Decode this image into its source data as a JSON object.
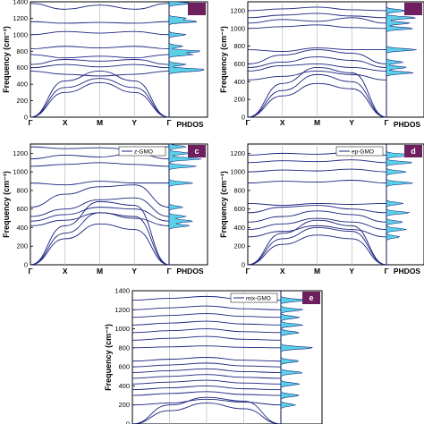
{
  "figure": {
    "common": {
      "ylabel": "Frequency (cm⁻¹)",
      "dos_label": "PHDOS",
      "x_tick_labels": [
        "Γ",
        "X",
        "M",
        "Y",
        "Γ"
      ],
      "band_color": "#1a237e",
      "dos_fill_color": "#5ad1e6"
    }
  },
  "chart_data": [
    {
      "panel": "a",
      "type": "line",
      "legend": "",
      "badge": "",
      "ylim": [
        0,
        1400
      ],
      "yticks": [
        0,
        200,
        400,
        600,
        800,
        1000,
        1200,
        1400
      ],
      "ytick_labels": [
        "0",
        "200",
        "400",
        "600",
        "800",
        "1000",
        "1200",
        "1400"
      ],
      "x_tick_labels": [
        "Γ",
        "X",
        "M",
        "Y",
        "Γ"
      ],
      "series": [
        {
          "values": [
            0,
            300,
            420,
            300,
            0
          ]
        },
        {
          "values": [
            0,
            360,
            470,
            360,
            0
          ]
        },
        {
          "values": [
            0,
            440,
            560,
            440,
            0
          ]
        },
        {
          "values": [
            560,
            520,
            500,
            520,
            560
          ]
        },
        {
          "values": [
            600,
            640,
            610,
            640,
            600
          ]
        },
        {
          "values": [
            640,
            700,
            680,
            700,
            640
          ]
        },
        {
          "values": [
            760,
            720,
            740,
            720,
            760
          ]
        },
        {
          "values": [
            830,
            860,
            840,
            860,
            830
          ]
        },
        {
          "values": [
            1000,
            1040,
            1020,
            1040,
            1000
          ]
        },
        {
          "values": [
            1160,
            1140,
            1150,
            1140,
            1160
          ]
        },
        {
          "values": [
            1380,
            1310,
            1360,
            1310,
            1380
          ]
        }
      ],
      "dos_peaks": [
        [
          560,
          0.6
        ],
        [
          580,
          0.9
        ],
        [
          640,
          0.5
        ],
        [
          760,
          0.7
        ],
        [
          800,
          0.95
        ],
        [
          860,
          0.4
        ],
        [
          1000,
          0.5
        ],
        [
          1160,
          0.85
        ],
        [
          1200,
          0.5
        ],
        [
          1380,
          0.7
        ]
      ]
    },
    {
      "panel": "b",
      "type": "line",
      "legend": "",
      "badge": "",
      "ylim": [
        0,
        1300
      ],
      "yticks": [
        0,
        200,
        400,
        600,
        800,
        1000,
        1200
      ],
      "ytick_labels": [
        "0",
        "200",
        "400",
        "600",
        "800",
        "1000",
        "1200"
      ],
      "x_tick_labels": [
        "Γ",
        "X",
        "M",
        "Y",
        "Γ"
      ],
      "series": [
        {
          "values": [
            0,
            240,
            380,
            320,
            0
          ]
        },
        {
          "values": [
            0,
            300,
            480,
            400,
            0
          ]
        },
        {
          "values": [
            0,
            380,
            560,
            500,
            0
          ]
        },
        {
          "values": [
            420,
            460,
            520,
            480,
            420
          ]
        },
        {
          "values": [
            520,
            580,
            600,
            560,
            520
          ]
        },
        {
          "values": [
            560,
            620,
            680,
            640,
            560
          ]
        },
        {
          "values": [
            600,
            700,
            760,
            720,
            600
          ]
        },
        {
          "values": [
            760,
            740,
            780,
            760,
            760
          ]
        },
        {
          "values": [
            1000,
            1020,
            1040,
            1010,
            1000
          ]
        },
        {
          "values": [
            1060,
            1100,
            1080,
            1120,
            1060
          ]
        },
        {
          "values": [
            1120,
            1150,
            1170,
            1140,
            1120
          ]
        },
        {
          "values": [
            1200,
            1220,
            1240,
            1210,
            1200
          ]
        }
      ],
      "dos_peaks": [
        [
          500,
          0.8
        ],
        [
          560,
          0.6
        ],
        [
          620,
          0.5
        ],
        [
          760,
          0.9
        ],
        [
          1000,
          0.8
        ],
        [
          1060,
          0.7
        ],
        [
          1120,
          0.9
        ],
        [
          1200,
          0.6
        ]
      ]
    },
    {
      "panel": "c",
      "type": "line",
      "legend": "z-GMO",
      "badge": "c",
      "ylim": [
        0,
        1300
      ],
      "yticks": [
        0,
        200,
        400,
        600,
        800,
        1000,
        1200
      ],
      "ytick_labels": [
        "0",
        "200",
        "400",
        "600",
        "800",
        "1000",
        "1200"
      ],
      "x_tick_labels": [
        "Γ",
        "X",
        "M",
        "Y",
        "Γ"
      ],
      "series": [
        {
          "values": [
            0,
            280,
            440,
            380,
            0
          ]
        },
        {
          "values": [
            0,
            340,
            560,
            520,
            0
          ]
        },
        {
          "values": [
            0,
            420,
            680,
            640,
            0
          ]
        },
        {
          "values": [
            420,
            480,
            560,
            500,
            420
          ]
        },
        {
          "values": [
            470,
            540,
            620,
            600,
            470
          ]
        },
        {
          "values": [
            520,
            600,
            700,
            720,
            520
          ]
        },
        {
          "values": [
            620,
            760,
            840,
            860,
            620
          ]
        },
        {
          "values": [
            880,
            860,
            900,
            880,
            880
          ]
        },
        {
          "values": [
            1060,
            1080,
            1100,
            1080,
            1060
          ]
        },
        {
          "values": [
            1140,
            1180,
            1160,
            1200,
            1140
          ]
        },
        {
          "values": [
            1270,
            1250,
            1260,
            1240,
            1270
          ]
        }
      ],
      "dos_peaks": [
        [
          420,
          0.6
        ],
        [
          470,
          0.7
        ],
        [
          520,
          0.5
        ],
        [
          620,
          0.4
        ],
        [
          880,
          0.7
        ],
        [
          1060,
          0.8
        ],
        [
          1140,
          0.95
        ],
        [
          1200,
          0.6
        ],
        [
          1270,
          0.5
        ]
      ]
    },
    {
      "panel": "d",
      "type": "line",
      "legend": "ep-GMO",
      "badge": "d",
      "ylim": [
        0,
        1300
      ],
      "yticks": [
        0,
        200,
        400,
        600,
        800,
        1000,
        1200
      ],
      "ytick_labels": [
        "0",
        "200",
        "400",
        "600",
        "800",
        "1000",
        "1200"
      ],
      "x_tick_labels": [
        "Γ",
        "X",
        "M",
        "Y",
        "Γ"
      ],
      "series": [
        {
          "values": [
            0,
            220,
            320,
            280,
            0
          ]
        },
        {
          "values": [
            0,
            280,
            400,
            360,
            0
          ]
        },
        {
          "values": [
            0,
            340,
            480,
            420,
            0
          ]
        },
        {
          "values": [
            300,
            360,
            420,
            380,
            300
          ]
        },
        {
          "values": [
            380,
            440,
            500,
            460,
            380
          ]
        },
        {
          "values": [
            460,
            520,
            580,
            540,
            460
          ]
        },
        {
          "values": [
            560,
            620,
            640,
            600,
            560
          ]
        },
        {
          "values": [
            660,
            640,
            660,
            650,
            660
          ]
        },
        {
          "values": [
            880,
            900,
            890,
            910,
            880
          ]
        },
        {
          "values": [
            1000,
            1020,
            1010,
            1030,
            1000
          ]
        },
        {
          "values": [
            1100,
            1120,
            1110,
            1130,
            1100
          ]
        },
        {
          "values": [
            1180,
            1200,
            1190,
            1210,
            1180
          ]
        }
      ],
      "dos_peaks": [
        [
          300,
          0.4
        ],
        [
          380,
          0.6
        ],
        [
          460,
          0.5
        ],
        [
          560,
          0.7
        ],
        [
          660,
          0.5
        ],
        [
          880,
          0.8
        ],
        [
          1000,
          0.6
        ],
        [
          1100,
          0.8
        ],
        [
          1180,
          0.9
        ]
      ]
    },
    {
      "panel": "e",
      "type": "line",
      "legend": "mix-GMO",
      "badge": "e",
      "ylim": [
        0,
        1400
      ],
      "yticks": [
        0,
        200,
        400,
        600,
        800,
        1000,
        1200,
        1400
      ],
      "ytick_labels": [
        "0",
        "200",
        "400",
        "600",
        "800",
        "1000",
        "1200",
        "1400"
      ],
      "x_tick_labels": [],
      "series": [
        {
          "values": [
            0,
            140,
            220,
            160,
            0
          ]
        },
        {
          "values": [
            0,
            200,
            280,
            240,
            0
          ]
        },
        {
          "values": [
            200,
            220,
            260,
            230,
            200
          ]
        },
        {
          "values": [
            300,
            320,
            340,
            310,
            300
          ]
        },
        {
          "values": [
            360,
            380,
            400,
            370,
            360
          ]
        },
        {
          "values": [
            420,
            440,
            460,
            430,
            420
          ]
        },
        {
          "values": [
            480,
            500,
            520,
            490,
            480
          ]
        },
        {
          "values": [
            540,
            560,
            580,
            550,
            540
          ]
        },
        {
          "values": [
            600,
            620,
            640,
            610,
            600
          ]
        },
        {
          "values": [
            660,
            680,
            700,
            670,
            660
          ]
        },
        {
          "values": [
            800,
            810,
            820,
            805,
            800
          ]
        },
        {
          "values": [
            880,
            900,
            920,
            890,
            880
          ]
        },
        {
          "values": [
            960,
            980,
            1000,
            970,
            960
          ]
        },
        {
          "values": [
            1040,
            1060,
            1080,
            1050,
            1040
          ]
        },
        {
          "values": [
            1120,
            1140,
            1160,
            1130,
            1120
          ]
        },
        {
          "values": [
            1200,
            1220,
            1240,
            1210,
            1200
          ]
        },
        {
          "values": [
            1300,
            1320,
            1340,
            1310,
            1300
          ]
        }
      ],
      "dos_peaks": [
        [
          200,
          0.4
        ],
        [
          300,
          0.5
        ],
        [
          420,
          0.5
        ],
        [
          540,
          0.6
        ],
        [
          660,
          0.5
        ],
        [
          800,
          0.9
        ],
        [
          960,
          0.5
        ],
        [
          1040,
          0.6
        ],
        [
          1120,
          0.5
        ],
        [
          1200,
          0.6
        ],
        [
          1300,
          0.7
        ]
      ]
    }
  ]
}
